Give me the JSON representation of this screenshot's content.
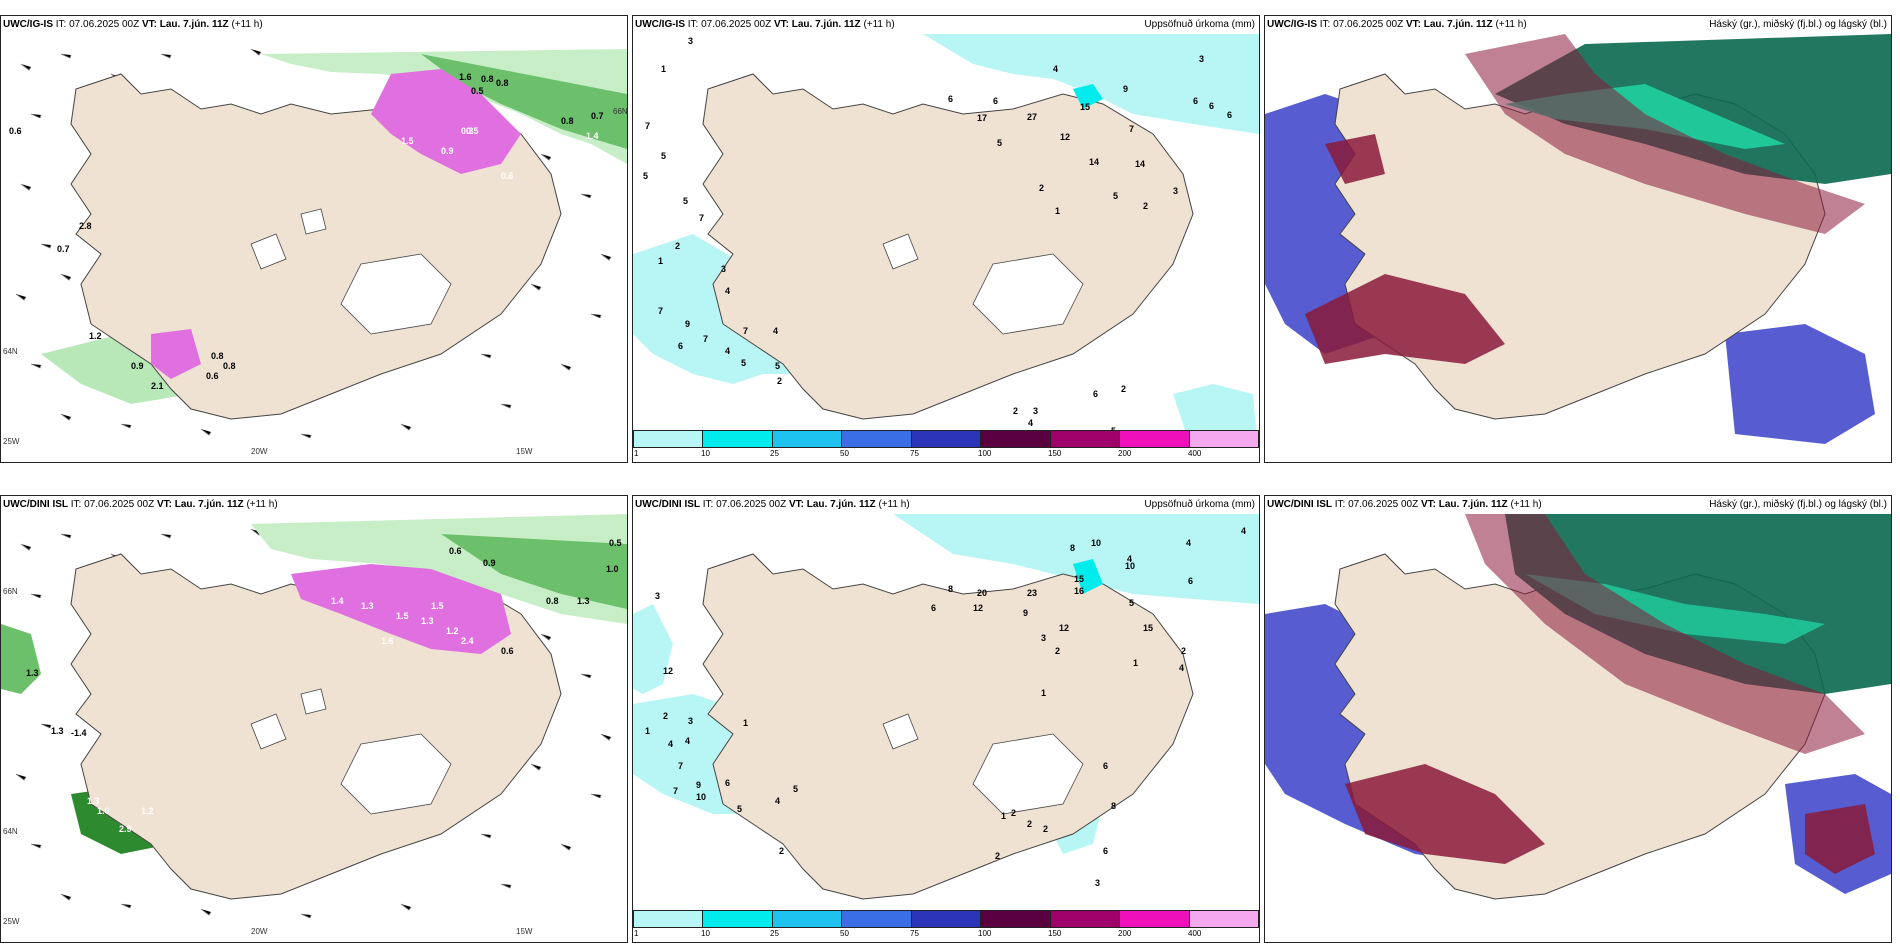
{
  "panels": {
    "p1": {
      "model": "UWC/IG-IS",
      "it": "IT: 07.06.2025 00Z",
      "vt": "VT: Lau. 7.jún. 11Z",
      "lead": "(+11 h)",
      "right": ""
    },
    "p2": {
      "model": "UWC/IG-IS",
      "it": "IT: 07.06.2025 00Z",
      "vt": "VT: Lau. 7.jún. 11Z",
      "lead": "(+11 h)",
      "right": "Uppsöfnuð úrkoma (mm)"
    },
    "p3": {
      "model": "UWC/IG-IS",
      "it": "IT: 07.06.2025 00Z",
      "vt": "VT: Lau. 7.jún. 11Z",
      "lead": "(+11 h)",
      "right": "Háský (gr.), miðský (fj.bl.) og lágský (bl.)"
    },
    "p4": {
      "model": "UWC/DINI ISL",
      "it": "IT: 07.06.2025 00Z",
      "vt": "VT: Lau. 7.jún. 11Z",
      "lead": "(+11 h)",
      "right": ""
    },
    "p5": {
      "model": "UWC/DINI ISL",
      "it": "IT: 07.06.2025 00Z",
      "vt": "VT: Lau. 7.jún. 11Z",
      "lead": "(+11 h)",
      "right": "Uppsöfnuð úrkoma (mm)"
    },
    "p6": {
      "model": "UWC/DINI ISL",
      "it": "IT: 07.06.2025 00Z",
      "vt": "VT: Lau. 7.jún. 11Z",
      "lead": "(+11 h)",
      "right": "Háský (gr.), miðský (fj.bl.) og lágský (bl.)"
    }
  },
  "axis": {
    "lon20": "20W",
    "lon15": "15W",
    "lon25": "25W",
    "lat66": "66N",
    "lat64": "64N"
  },
  "colorbar": {
    "colors": [
      "#b8f6f6",
      "#00ecec",
      "#1ec2ee",
      "#3a6ee6",
      "#2c34b8",
      "#5a0040",
      "#a0006a",
      "#ee10b8",
      "#f4a8ee"
    ],
    "ticks": [
      "1",
      "10",
      "25",
      "50",
      "75",
      "100",
      "150",
      "200",
      "400"
    ]
  },
  "colors": {
    "land": "#f0e2d2",
    "precip": "#b8f6f6",
    "high_cloud": "#00a870",
    "mid_cloud": "#8a1a3a",
    "low_cloud": "#3a40c8"
  },
  "precip_labels_top": {
    "l01": "3",
    "l02": "1",
    "l03": "7",
    "l04": "5",
    "l05": "5",
    "l06": "5",
    "l07": "7",
    "l08": "2",
    "l09": "1",
    "l10": "3",
    "l11": "4",
    "l12": "7",
    "l13": "9",
    "l14": "6",
    "l15": "7",
    "l16": "7",
    "l17": "4",
    "l18": "4",
    "l19": "5",
    "l20": "5",
    "l21": "2",
    "l22": "6",
    "l23": "17",
    "l24": "6",
    "l25": "27",
    "l26": "5",
    "l27": "15",
    "l28": "12",
    "l29": "14",
    "l30": "14",
    "l31": "4",
    "l32": "9",
    "l33": "7",
    "l34": "3",
    "l35": "6",
    "l36": "6",
    "l37": "6",
    "l38": "2",
    "l39": "1",
    "l40": "5",
    "l41": "3",
    "l42": "2",
    "l43": "3",
    "l44": "4",
    "l45": "6",
    "l46": "2",
    "l47": "5",
    "l48": "2"
  },
  "precip_labels_bot": {
    "l01": "3",
    "l02": "12",
    "l03": "2",
    "l04": "1",
    "l05": "3",
    "l06": "4",
    "l07": "4",
    "l08": "7",
    "l09": "7",
    "l10": "9",
    "l11": "10",
    "l12": "6",
    "l13": "5",
    "l14": "4",
    "l15": "2",
    "l16": "1",
    "l17": "5",
    "l18": "6",
    "l19": "8",
    "l20": "20",
    "l21": "12",
    "l22": "23",
    "l23": "9",
    "l24": "15",
    "l25": "16",
    "l26": "8",
    "l27": "10",
    "l28": "10",
    "l29": "4",
    "l30": "4",
    "l31": "4",
    "l32": "6",
    "l33": "5",
    "l34": "12",
    "l35": "15",
    "l36": "2",
    "l37": "1",
    "l38": "3",
    "l39": "2",
    "l40": "4",
    "l41": "1",
    "l42": "6",
    "l43": "8",
    "l44": "2",
    "l45": "2",
    "l46": "2",
    "l47": "6",
    "l48": "3",
    "l49": "2",
    "l50": "1"
  },
  "wind_labels_top": {
    "w01": "0.6",
    "w02": "2.8",
    "w03": "0.7",
    "w04": "1.2",
    "w05": "0.9",
    "w06": "0.8",
    "w07": "0.8",
    "w08": "0.6",
    "w09": "2.1",
    "w10": "1.6",
    "w11": "0.8",
    "w12": "0.8",
    "w13": "0.5",
    "w14": "0.7",
    "w15": "0.8",
    "w16": "1.4",
    "w17": "0.5",
    "w18": "1.5",
    "w19": "0.9",
    "w20": "0.3",
    "w21": "0.6"
  },
  "wind_labels_bot": {
    "w01": "0.5",
    "w02": "1.0",
    "w03": "0.8",
    "w04": "1.3",
    "w05": "0.6",
    "w06": "0.9",
    "w07": "1.5",
    "w08": "1.3",
    "w09": "1.2",
    "w10": "1.4",
    "w11": "1.3",
    "w12": "2.4",
    "w13": "1.5",
    "w14": "1.6",
    "w15": "1.3",
    "w16": "-1.4",
    "w17": "1.3",
    "w18": "1.0",
    "w19": "1.3",
    "w20": "1.2",
    "w21": "2.9",
    "w22": "0.6"
  }
}
